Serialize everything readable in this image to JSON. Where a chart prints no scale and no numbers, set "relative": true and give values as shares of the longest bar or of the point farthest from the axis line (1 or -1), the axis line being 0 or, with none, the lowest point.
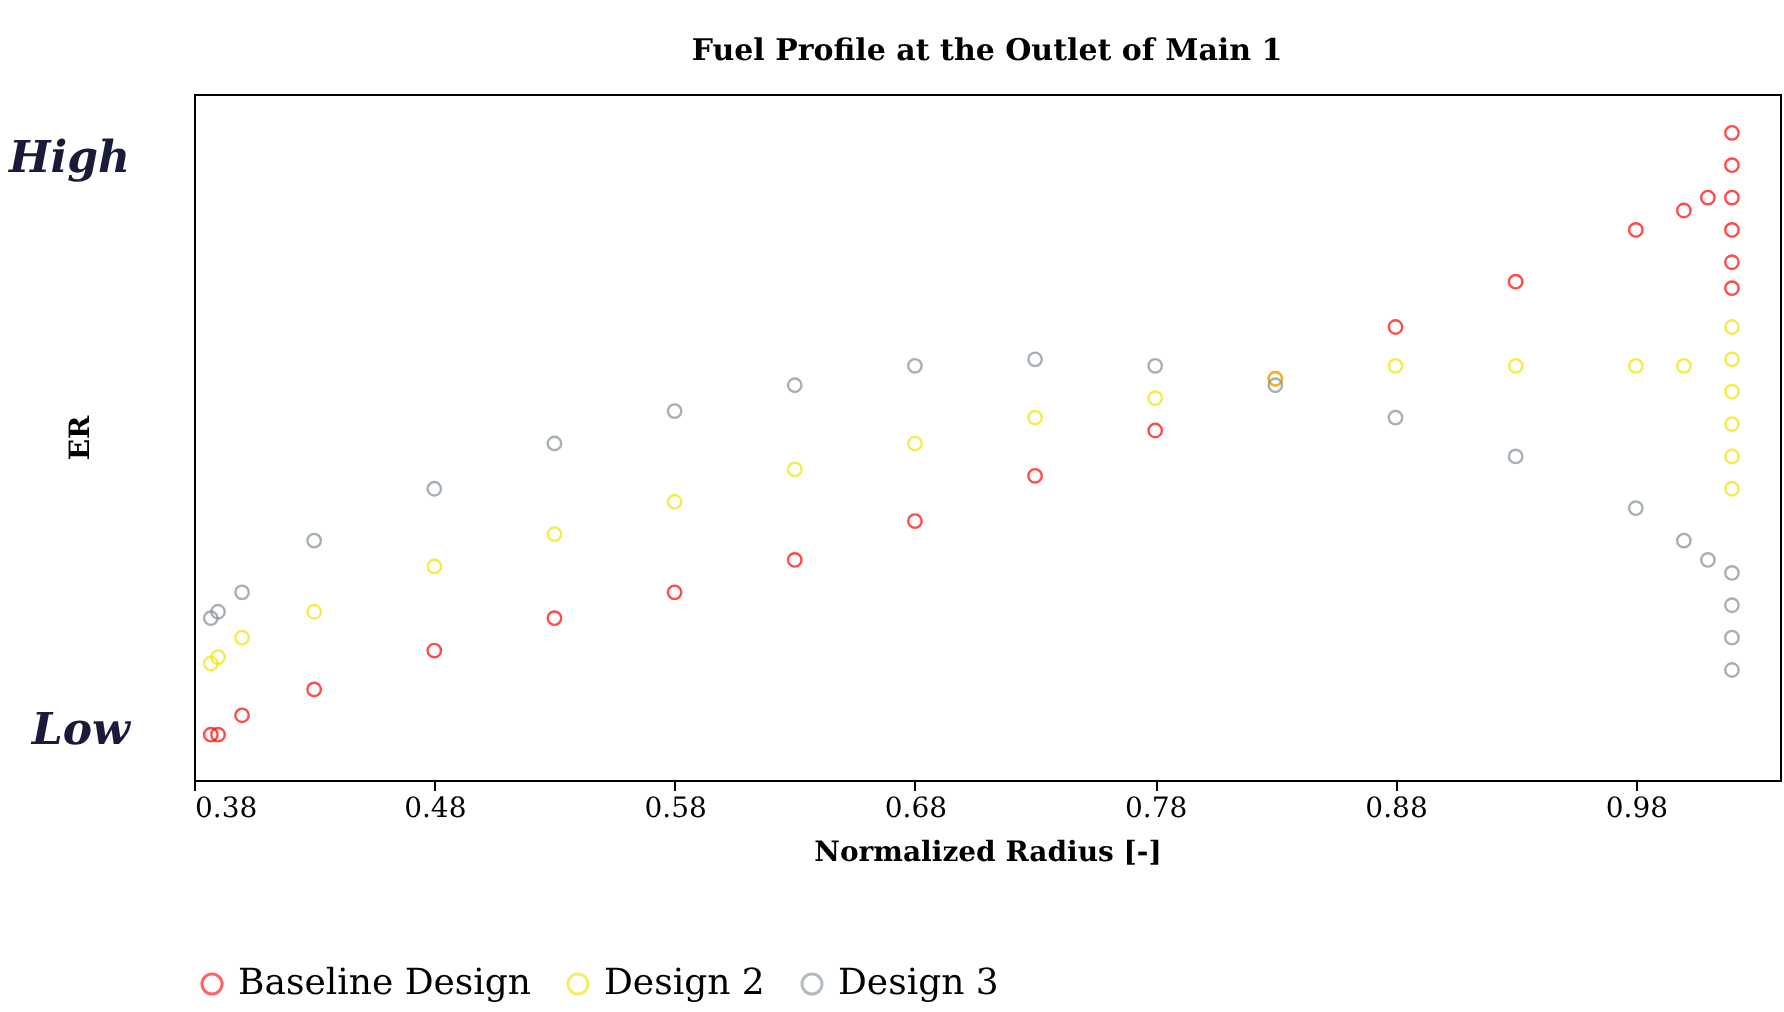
{
  "chart_data": {
    "type": "scatter",
    "title": "Fuel Profile at the Outlet of Main 1",
    "xlabel": "Normalized Radius [-]",
    "ylabel": "ER",
    "relative": true,
    "annotations": [
      "High",
      "Low"
    ],
    "xlim": [
      0.38,
      1.04
    ],
    "xticks": [
      0.38,
      0.48,
      0.58,
      0.68,
      0.78,
      0.88,
      0.98
    ],
    "marker": "circle",
    "legend": "bottom",
    "grid": false,
    "series": [
      {
        "name": "Baseline Design",
        "color": "#ff0000",
        "x": [
          0.387,
          0.39,
          0.4,
          0.43,
          0.48,
          0.53,
          0.58,
          0.63,
          0.68,
          0.73,
          0.78,
          0.83,
          0.88,
          0.93,
          0.98,
          1.0,
          1.01,
          1.02,
          1.02,
          1.02,
          1.02,
          1.02,
          1.02
        ],
        "values": [
          0.07,
          0.07,
          0.1,
          0.14,
          0.2,
          0.25,
          0.29,
          0.34,
          0.4,
          0.47,
          0.54,
          0.62,
          0.7,
          0.77,
          0.85,
          0.88,
          0.9,
          1.0,
          0.95,
          0.9,
          0.85,
          0.8,
          0.76
        ]
      },
      {
        "name": "Design 2",
        "color": "#f0e400",
        "x": [
          0.387,
          0.39,
          0.4,
          0.43,
          0.48,
          0.53,
          0.58,
          0.63,
          0.68,
          0.73,
          0.78,
          0.83,
          0.88,
          0.93,
          0.98,
          1.0,
          1.02,
          1.02,
          1.02,
          1.02,
          1.02,
          1.02
        ],
        "values": [
          0.18,
          0.19,
          0.22,
          0.26,
          0.33,
          0.38,
          0.43,
          0.48,
          0.52,
          0.56,
          0.59,
          0.62,
          0.64,
          0.64,
          0.64,
          0.64,
          0.7,
          0.65,
          0.6,
          0.55,
          0.5,
          0.45
        ]
      },
      {
        "name": "Design 3",
        "color": "#7f8f9a",
        "x": [
          0.387,
          0.39,
          0.4,
          0.43,
          0.48,
          0.53,
          0.58,
          0.63,
          0.68,
          0.73,
          0.78,
          0.83,
          0.88,
          0.93,
          0.98,
          1.0,
          1.01,
          1.02,
          1.02,
          1.02,
          1.02
        ],
        "values": [
          0.25,
          0.26,
          0.29,
          0.37,
          0.45,
          0.52,
          0.57,
          0.61,
          0.64,
          0.65,
          0.64,
          0.61,
          0.56,
          0.5,
          0.42,
          0.37,
          0.34,
          0.32,
          0.27,
          0.22,
          0.17
        ]
      }
    ]
  }
}
